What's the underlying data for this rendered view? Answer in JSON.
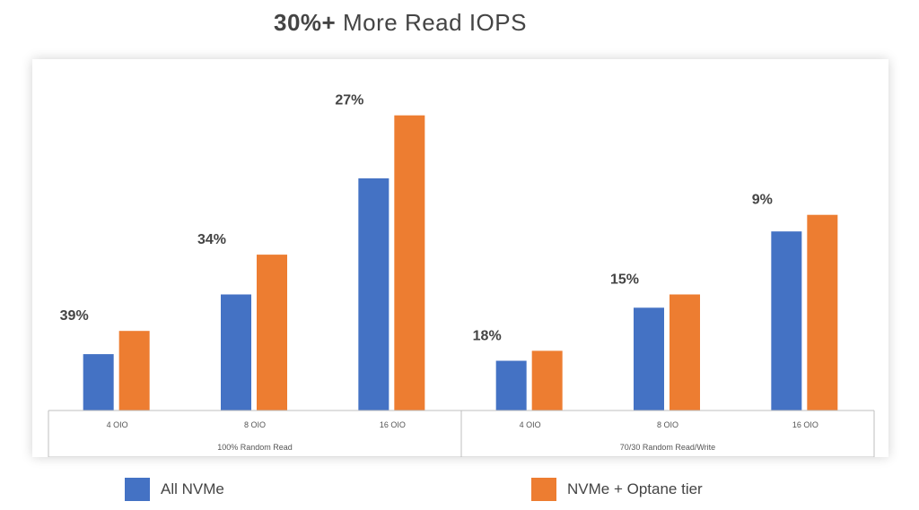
{
  "title_bold": "30%+",
  "title_rest": "More Read IOPS",
  "colors": {
    "all_nvme": "#4472C4",
    "nvme_optane": "#ED7D31",
    "axis": "#BFBFBF",
    "text": "#444444"
  },
  "legend": [
    {
      "name": "All NVMe",
      "color": "#4472C4"
    },
    {
      "name": "NVMe + Optane tier",
      "color": "#ED7D31"
    }
  ],
  "chart_data": {
    "type": "bar",
    "title": "30%+ More Read IOPS",
    "groups": [
      {
        "label": "100% Random Read",
        "categories": [
          "4 OIO",
          "8 OIO",
          "16 OIO"
        ]
      },
      {
        "label": "70/30 Random Read/Write",
        "categories": [
          "4 OIO",
          "8 OIO",
          "16 OIO"
        ]
      }
    ],
    "categories": [
      "4 OIO",
      "8 OIO",
      "16 OIO",
      "4 OIO",
      "8 OIO",
      "16 OIO"
    ],
    "series": [
      {
        "name": "All NVMe",
        "values": [
          17,
          35,
          70,
          15,
          31,
          54
        ]
      },
      {
        "name": "NVMe + Optane tier",
        "values": [
          24,
          47,
          89,
          18,
          35,
          59
        ]
      }
    ],
    "annotations": [
      "39%",
      "34%",
      "27%",
      "18%",
      "15%",
      "9%"
    ],
    "ylim": [
      0,
      100
    ],
    "grid": false,
    "legend_position": "bottom"
  }
}
